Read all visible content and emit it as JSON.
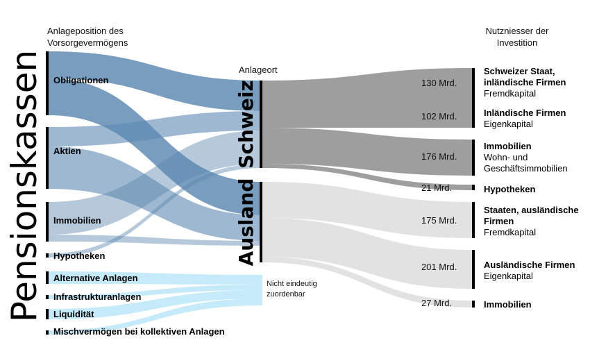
{
  "title": "Pensionskassen",
  "headers": {
    "left": "Anlageposition des Vorsorgevermögens",
    "middle": "Anlageort",
    "right": "Nutzniesser der Investition"
  },
  "sources": [
    {
      "id": "obligationen",
      "label": "Obligationen"
    },
    {
      "id": "aktien",
      "label": "Aktien"
    },
    {
      "id": "immobilien",
      "label": "Immobilien"
    },
    {
      "id": "hypotheken",
      "label": "Hypotheken"
    },
    {
      "id": "alternative",
      "label": "Alternative Anlagen"
    },
    {
      "id": "infrastruktur",
      "label": "Infrastrukturanlagen"
    },
    {
      "id": "liquiditaet",
      "label": "Liquidität"
    },
    {
      "id": "misch",
      "label": "Mischvermögen bei kollektiven Anlagen"
    }
  ],
  "locations": [
    {
      "id": "schweiz",
      "label": "Schweiz"
    },
    {
      "id": "ausland",
      "label": "Ausland"
    },
    {
      "id": "nicht",
      "label": "Nicht eindeutig zuordenbar"
    }
  ],
  "targets": [
    {
      "id": "t1",
      "value": "130 Mrd.",
      "title": "Schweizer Staat, inländische Firmen",
      "subtitle": "Fremdkapital"
    },
    {
      "id": "t2",
      "value": "102 Mrd.",
      "title": "Inländische Firmen",
      "subtitle": "Eigenkapital"
    },
    {
      "id": "t3",
      "value": "176 Mrd.",
      "title": "Immobilien",
      "subtitle": "Wohn- und Geschäftsimmobilien"
    },
    {
      "id": "t4",
      "value": "21 Mrd.",
      "title": "Hypotheken",
      "subtitle": ""
    },
    {
      "id": "t5",
      "value": "175 Mrd.",
      "title": "Staaten, ausländische Firmen",
      "subtitle": "Fremdkapital"
    },
    {
      "id": "t6",
      "value": "201 Mrd.",
      "title": "Ausländische Firmen",
      "subtitle": "Eigenkapital"
    },
    {
      "id": "t7",
      "value": "27 Mrd.",
      "title": "Immobilien",
      "subtitle": ""
    }
  ],
  "flows_left": [
    {
      "source": "obligationen",
      "location": "schweiz"
    },
    {
      "source": "obligationen",
      "location": "ausland"
    },
    {
      "source": "aktien",
      "location": "schweiz"
    },
    {
      "source": "aktien",
      "location": "ausland"
    },
    {
      "source": "immobilien",
      "location": "schweiz"
    },
    {
      "source": "immobilien",
      "location": "ausland"
    },
    {
      "source": "hypotheken",
      "location": "schweiz"
    },
    {
      "source": "alternative",
      "location": "nicht"
    },
    {
      "source": "infrastruktur",
      "location": "nicht"
    },
    {
      "source": "liquiditaet",
      "location": "nicht"
    },
    {
      "source": "misch",
      "location": "nicht"
    }
  ],
  "flows_right": [
    {
      "location": "schweiz",
      "target": "t1"
    },
    {
      "location": "schweiz",
      "target": "t2"
    },
    {
      "location": "schweiz",
      "target": "t3"
    },
    {
      "location": "schweiz",
      "target": "t4"
    },
    {
      "location": "ausland",
      "target": "t5"
    },
    {
      "location": "ausland",
      "target": "t6"
    },
    {
      "location": "ausland",
      "target": "t7"
    }
  ],
  "colors": {
    "source_flow": "#5b88b0",
    "alt_flow": "#bfe8f8",
    "schweiz_flow": "#9e9e9e",
    "ausland_flow": "#e2e2e2",
    "bar": "#000000"
  }
}
